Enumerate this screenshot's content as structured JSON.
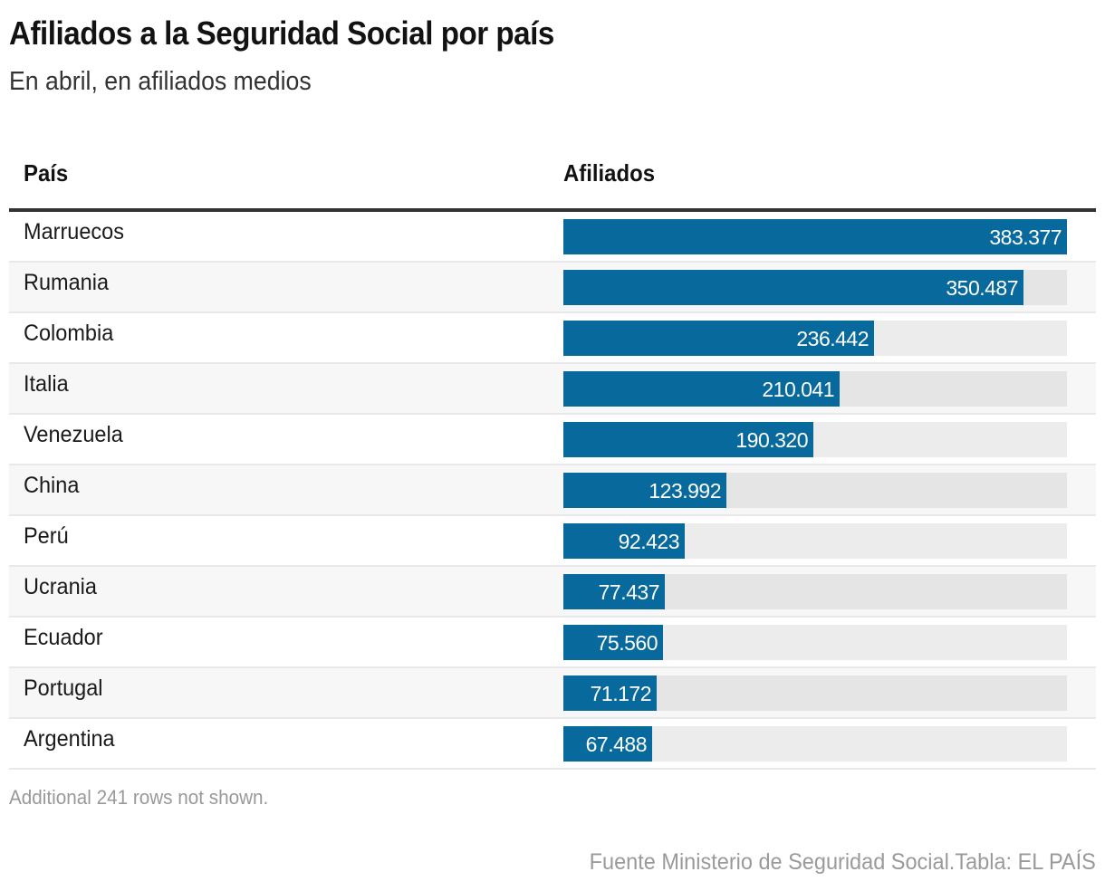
{
  "title": "Afiliados a la Seguridad Social por país",
  "subtitle": "En abril, en afiliados medios",
  "columns": {
    "country": "País",
    "value": "Afiliados"
  },
  "colors": {
    "bar": "#07699c",
    "track": "#ececec",
    "track_alt": "#e5e5e5",
    "row_alt": "#f7f7f7"
  },
  "rows": [
    {
      "country": "Marruecos",
      "value": 383377,
      "label": "383.377"
    },
    {
      "country": "Rumania",
      "value": 350487,
      "label": "350.487"
    },
    {
      "country": "Colombia",
      "value": 236442,
      "label": "236.442"
    },
    {
      "country": "Italia",
      "value": 210041,
      "label": "210.041"
    },
    {
      "country": "Venezuela",
      "value": 190320,
      "label": "190.320"
    },
    {
      "country": "China",
      "value": 123992,
      "label": "123.992"
    },
    {
      "country": "Perú",
      "value": 92423,
      "label": "92.423"
    },
    {
      "country": "Ucrania",
      "value": 77437,
      "label": "77.437"
    },
    {
      "country": "Ecuador",
      "value": 75560,
      "label": "75.560"
    },
    {
      "country": "Portugal",
      "value": 71172,
      "label": "71.172"
    },
    {
      "country": "Argentina",
      "value": 67488,
      "label": "67.488"
    }
  ],
  "note": "Additional 241 rows not shown.",
  "source": "Fuente Ministerio de Seguridad Social.Tabla: EL PAÍS",
  "chart_data": {
    "type": "table",
    "title": "Afiliados a la Seguridad Social por país",
    "subtitle": "En abril, en afiliados medios",
    "columns": [
      "País",
      "Afiliados"
    ],
    "categories": [
      "Marruecos",
      "Rumania",
      "Colombia",
      "Italia",
      "Venezuela",
      "China",
      "Perú",
      "Ucrania",
      "Ecuador",
      "Portugal",
      "Argentina"
    ],
    "values": [
      383377,
      350487,
      236442,
      210041,
      190320,
      123992,
      92423,
      77437,
      75560,
      71172,
      67488
    ],
    "xlim": [
      0,
      383377
    ],
    "note": "Additional 241 rows not shown.",
    "source": "Fuente Ministerio de Seguridad Social.Tabla: EL PAÍS"
  }
}
